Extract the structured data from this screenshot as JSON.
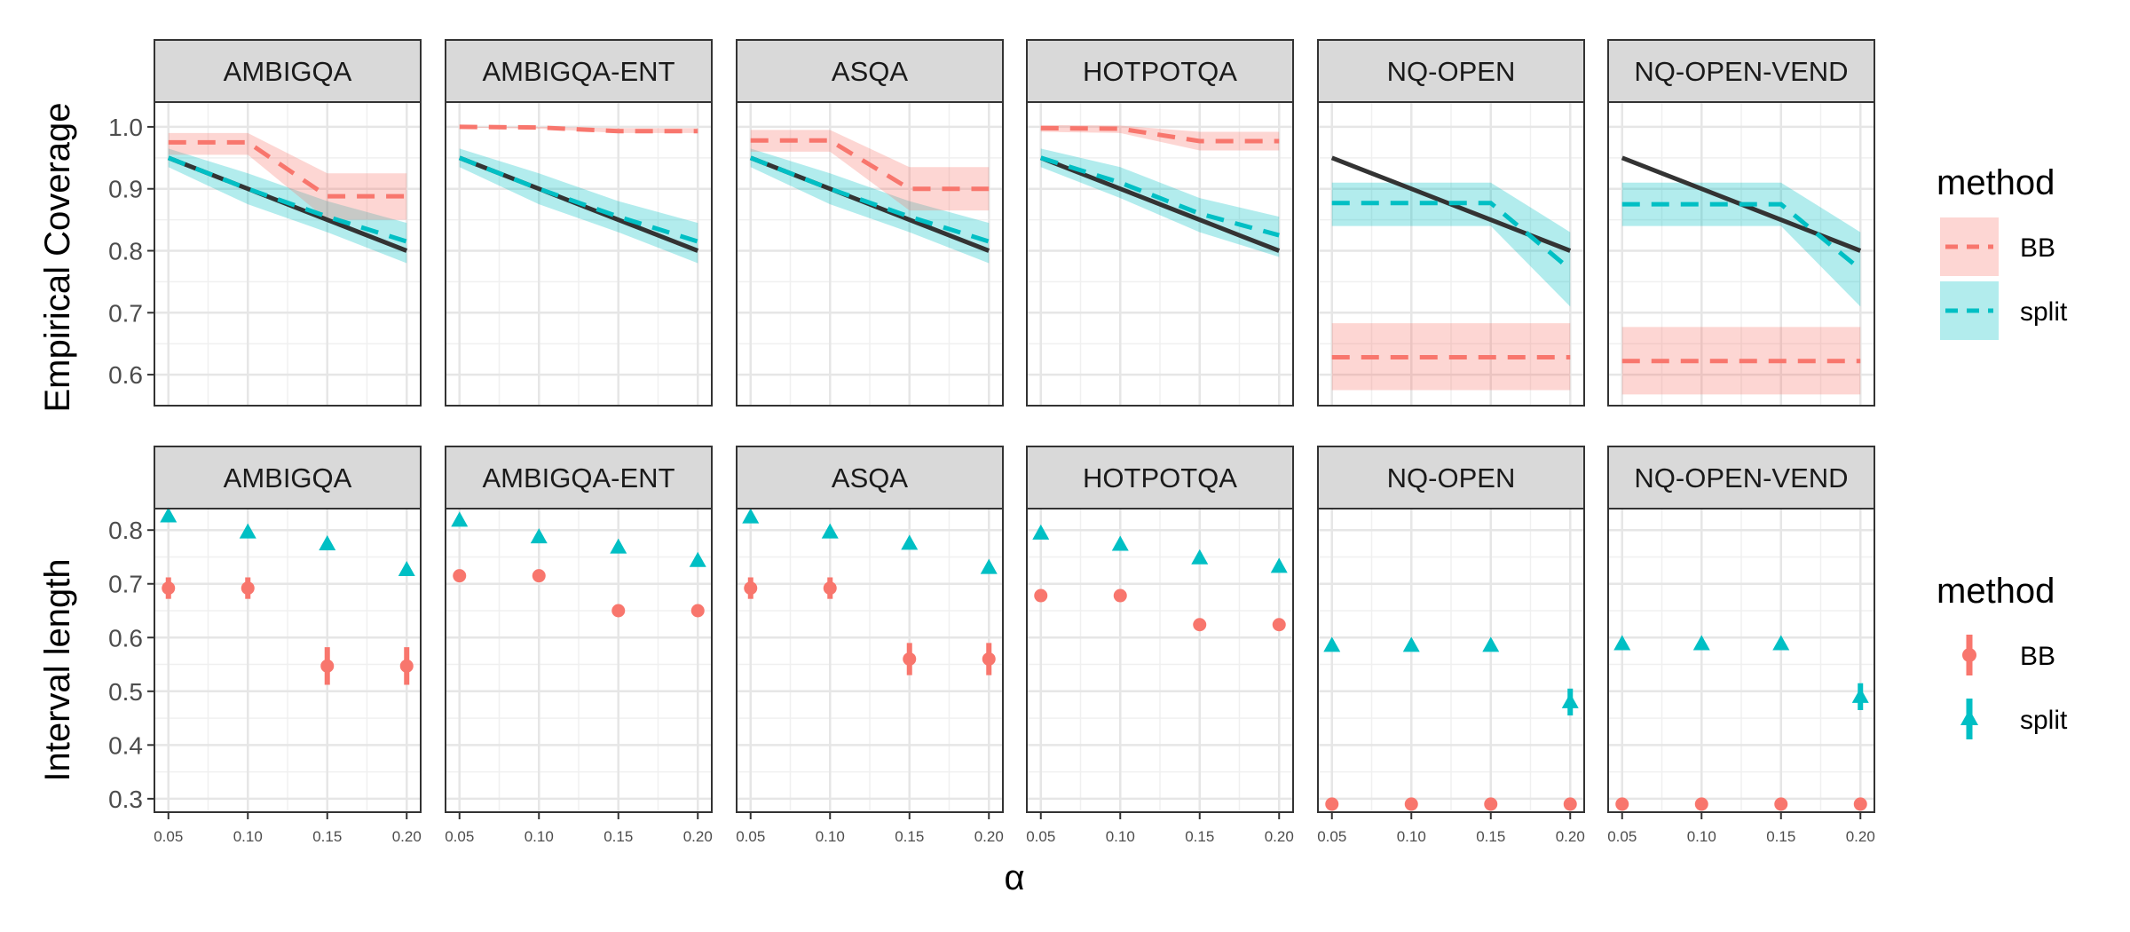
{
  "chart_data": [
    {
      "type": "line",
      "ylabel": "Empirical Coverage",
      "ylim": [
        0.55,
        1.04
      ],
      "yticks": [
        0.6,
        0.7,
        0.8,
        0.9,
        1.0
      ],
      "ytick_labels": [
        "0.6",
        "0.7",
        "0.8",
        "0.9",
        "1.0"
      ],
      "x": [
        0.05,
        0.1,
        0.15,
        0.2
      ],
      "reference_line": "1 - α (target coverage)",
      "facets": [
        {
          "name": "AMBIGQA",
          "series": [
            {
              "name": "BB",
              "values": [
                0.975,
                0.975,
                0.888,
                0.888
              ],
              "lower": [
                0.955,
                0.955,
                0.85,
                0.85
              ],
              "upper": [
                0.99,
                0.99,
                0.925,
                0.925
              ]
            },
            {
              "name": "split",
              "values": [
                0.95,
                0.9,
                0.855,
                0.815
              ],
              "lower": [
                0.935,
                0.875,
                0.83,
                0.78
              ],
              "upper": [
                0.965,
                0.925,
                0.88,
                0.845
              ]
            }
          ]
        },
        {
          "name": "AMBIGQA-ENT",
          "series": [
            {
              "name": "BB",
              "values": [
                1.0,
                0.999,
                0.993,
                0.993
              ],
              "lower": [
                0.999,
                0.997,
                0.99,
                0.99
              ],
              "upper": [
                1.0,
                1.0,
                0.998,
                0.998
              ]
            },
            {
              "name": "split",
              "values": [
                0.95,
                0.9,
                0.855,
                0.815
              ],
              "lower": [
                0.935,
                0.875,
                0.83,
                0.78
              ],
              "upper": [
                0.965,
                0.925,
                0.88,
                0.845
              ]
            }
          ]
        },
        {
          "name": "ASQA",
          "series": [
            {
              "name": "BB",
              "values": [
                0.978,
                0.978,
                0.9,
                0.9
              ],
              "lower": [
                0.96,
                0.96,
                0.865,
                0.865
              ],
              "upper": [
                0.995,
                0.995,
                0.935,
                0.935
              ]
            },
            {
              "name": "split",
              "values": [
                0.95,
                0.9,
                0.855,
                0.815
              ],
              "lower": [
                0.935,
                0.875,
                0.83,
                0.78
              ],
              "upper": [
                0.965,
                0.925,
                0.88,
                0.845
              ]
            }
          ]
        },
        {
          "name": "HOTPOTQA",
          "series": [
            {
              "name": "BB",
              "values": [
                0.998,
                0.997,
                0.977,
                0.977
              ],
              "lower": [
                0.992,
                0.99,
                0.962,
                0.962
              ],
              "upper": [
                1.003,
                1.002,
                0.992,
                0.992
              ]
            },
            {
              "name": "split",
              "values": [
                0.95,
                0.91,
                0.86,
                0.825
              ],
              "lower": [
                0.935,
                0.885,
                0.83,
                0.79
              ],
              "upper": [
                0.965,
                0.935,
                0.885,
                0.855
              ]
            }
          ]
        },
        {
          "name": "NQ-OPEN",
          "series": [
            {
              "name": "BB",
              "values": [
                0.628,
                0.628,
                0.628,
                0.628
              ],
              "lower": [
                0.575,
                0.575,
                0.575,
                0.575
              ],
              "upper": [
                0.683,
                0.683,
                0.683,
                0.683
              ]
            },
            {
              "name": "split",
              "values": [
                0.877,
                0.877,
                0.877,
                0.77
              ],
              "lower": [
                0.84,
                0.84,
                0.84,
                0.71
              ],
              "upper": [
                0.91,
                0.91,
                0.91,
                0.83
              ]
            }
          ]
        },
        {
          "name": "NQ-OPEN-VEND",
          "series": [
            {
              "name": "BB",
              "values": [
                0.622,
                0.622,
                0.622,
                0.622
              ],
              "lower": [
                0.568,
                0.568,
                0.568,
                0.568
              ],
              "upper": [
                0.677,
                0.677,
                0.677,
                0.677
              ]
            },
            {
              "name": "split",
              "values": [
                0.875,
                0.875,
                0.875,
                0.77
              ],
              "lower": [
                0.84,
                0.84,
                0.84,
                0.71
              ],
              "upper": [
                0.91,
                0.91,
                0.91,
                0.83
              ]
            }
          ]
        }
      ]
    },
    {
      "type": "scatter",
      "ylabel": "Interval length",
      "xlabel": "α",
      "ylim": [
        0.275,
        0.84
      ],
      "yticks": [
        0.3,
        0.4,
        0.5,
        0.6,
        0.7,
        0.8
      ],
      "ytick_labels": [
        "0.3",
        "0.4",
        "0.5",
        "0.6",
        "0.7",
        "0.8"
      ],
      "x": [
        0.05,
        0.1,
        0.15,
        0.2
      ],
      "x_tick_labels": [
        "0.05",
        "0.10",
        "0.15",
        "0.20"
      ],
      "facets": [
        {
          "name": "AMBIGQA",
          "series": [
            {
              "name": "BB",
              "values": [
                0.692,
                0.692,
                0.547,
                0.547
              ],
              "err": [
                0.02,
                0.02,
                0.035,
                0.035
              ]
            },
            {
              "name": "split",
              "values": [
                0.826,
                0.796,
                0.774,
                0.726
              ],
              "err": [
                0,
                0,
                0,
                0
              ]
            }
          ]
        },
        {
          "name": "AMBIGQA-ENT",
          "series": [
            {
              "name": "BB",
              "values": [
                0.715,
                0.715,
                0.65,
                0.65
              ],
              "err": [
                0,
                0,
                0,
                0
              ]
            },
            {
              "name": "split",
              "values": [
                0.818,
                0.787,
                0.768,
                0.743
              ],
              "err": [
                0,
                0,
                0,
                0
              ]
            }
          ]
        },
        {
          "name": "ASQA",
          "series": [
            {
              "name": "BB",
              "values": [
                0.692,
                0.692,
                0.56,
                0.56
              ],
              "err": [
                0.02,
                0.02,
                0.03,
                0.03
              ]
            },
            {
              "name": "split",
              "values": [
                0.824,
                0.796,
                0.775,
                0.73
              ],
              "err": [
                0,
                0,
                0,
                0
              ]
            }
          ]
        },
        {
          "name": "HOTPOTQA",
          "series": [
            {
              "name": "BB",
              "values": [
                0.678,
                0.678,
                0.624,
                0.624
              ],
              "err": [
                0,
                0,
                0,
                0
              ]
            },
            {
              "name": "split",
              "values": [
                0.794,
                0.773,
                0.748,
                0.732
              ],
              "err": [
                0,
                0,
                0,
                0
              ]
            }
          ]
        },
        {
          "name": "NQ-OPEN",
          "series": [
            {
              "name": "BB",
              "values": [
                0.29,
                0.29,
                0.29,
                0.29
              ],
              "err": [
                0,
                0,
                0,
                0
              ]
            },
            {
              "name": "split",
              "values": [
                0.585,
                0.585,
                0.585,
                0.48
              ],
              "err": [
                0,
                0,
                0,
                0.025
              ]
            }
          ]
        },
        {
          "name": "NQ-OPEN-VEND",
          "series": [
            {
              "name": "BB",
              "values": [
                0.29,
                0.29,
                0.29,
                0.29
              ],
              "err": [
                0,
                0,
                0,
                0
              ]
            },
            {
              "name": "split",
              "values": [
                0.588,
                0.588,
                0.588,
                0.49
              ],
              "err": [
                0,
                0,
                0,
                0.025
              ]
            }
          ]
        }
      ]
    }
  ],
  "legends": [
    {
      "title": "method",
      "entries": [
        "BB",
        "split"
      ]
    },
    {
      "title": "method",
      "entries": [
        "BB",
        "split"
      ]
    }
  ],
  "colors": {
    "BB": "#F8766D",
    "split": "#00BFC4",
    "reference": "#333333"
  }
}
